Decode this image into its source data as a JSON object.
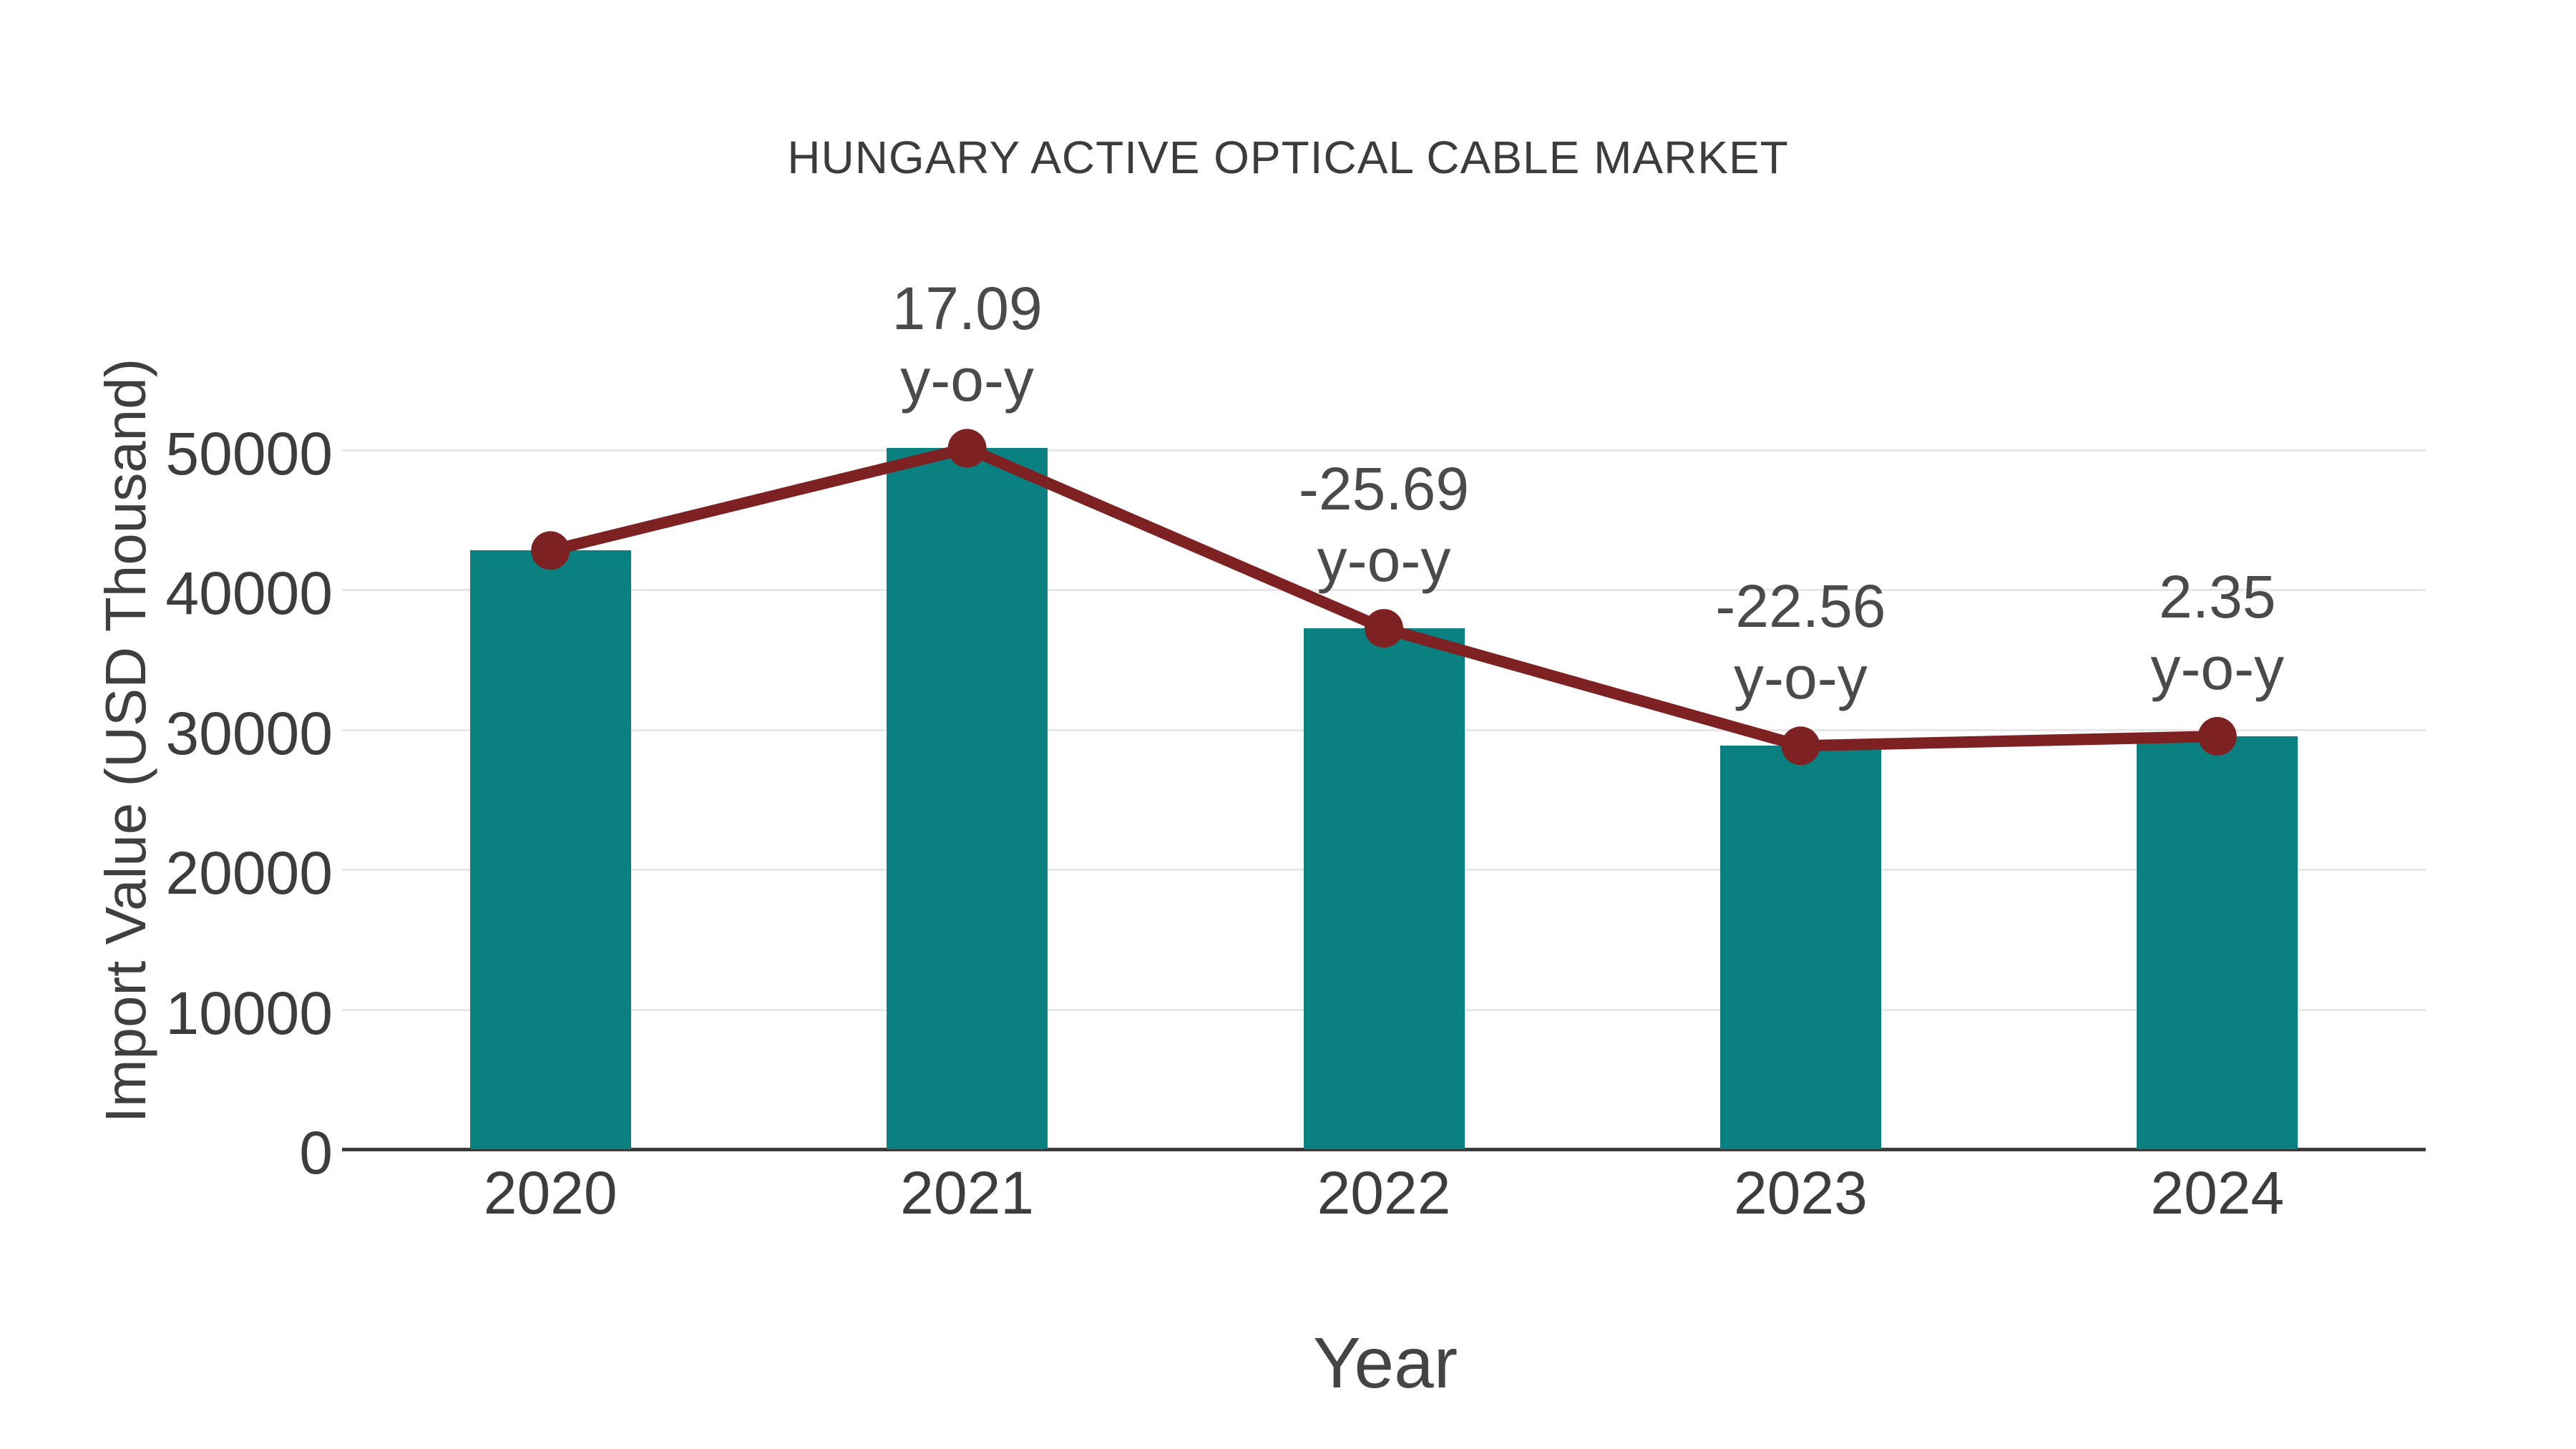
{
  "chart_data": {
    "type": "bar",
    "title": "HUNGARY ACTIVE OPTICAL CABLE MARKET",
    "xlabel": "Year",
    "ylabel": "Import Value (USD Thousand)",
    "categories": [
      "2020",
      "2021",
      "2022",
      "2023",
      "2024"
    ],
    "series": [
      {
        "name": "Import Value (USD Thousand)",
        "type": "bar",
        "values": [
          42815,
          50132,
          37252,
          28848,
          29526
        ]
      },
      {
        "name": "Import Value trend",
        "type": "line",
        "values": [
          42815,
          50132,
          37252,
          28848,
          29526
        ]
      }
    ],
    "annotations": [
      null,
      {
        "line1": "17.09",
        "line2": "y-o-y"
      },
      {
        "line1": "-25.69",
        "line2": "y-o-y"
      },
      {
        "line1": "-22.56",
        "line2": "y-o-y"
      },
      {
        "line1": "2.35",
        "line2": "y-o-y"
      }
    ],
    "yticks": [
      0,
      10000,
      20000,
      30000,
      40000,
      50000
    ],
    "ylim": [
      0,
      56000
    ],
    "grid": true,
    "legend": "none"
  },
  "colors": {
    "bar": "#0a8180",
    "line": "#7e2123",
    "marker": "#7e2123",
    "grid": "#e7e7e7",
    "axis_line": "#3a3a3a",
    "tick_text": "#3d3d3d",
    "annotation_text": "#4a4a4a",
    "title_text": "#3c3c3c"
  }
}
